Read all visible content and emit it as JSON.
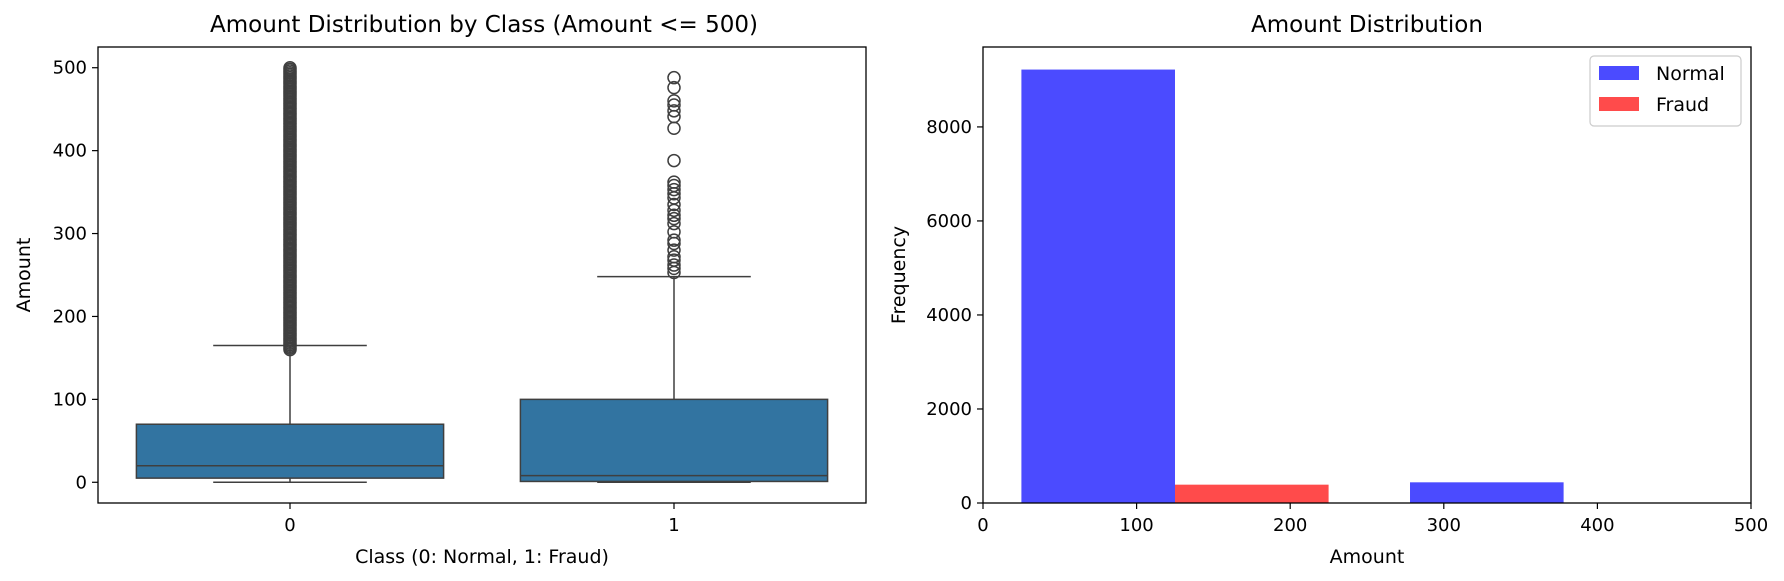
{
  "chart_data": [
    {
      "type": "box",
      "title": "Amount Distribution by Class (Amount <= 500)",
      "xlabel": "Class (0: Normal, 1: Fraud)",
      "ylabel": "Amount",
      "ylim": [
        -25,
        525
      ],
      "yticks": [
        0,
        100,
        200,
        300,
        400,
        500
      ],
      "categories": [
        "0",
        "1"
      ],
      "box_color": "#3274a1",
      "boxes": [
        {
          "category": "0",
          "whisker_low": 0,
          "q1": 5,
          "median": 20,
          "q3": 70,
          "whisker_high": 165,
          "outlier_range": [
            160,
            500
          ]
        },
        {
          "category": "1",
          "whisker_low": 0,
          "q1": 1,
          "median": 8,
          "q3": 100,
          "whisker_high": 248,
          "outliers": [
            253,
            258,
            262,
            268,
            272,
            280,
            288,
            292,
            302,
            312,
            318,
            322,
            328,
            335,
            343,
            348,
            353,
            358,
            362,
            388,
            427,
            441,
            448,
            455,
            460,
            476,
            488
          ]
        }
      ]
    },
    {
      "type": "bar",
      "title": "Amount Distribution",
      "xlabel": "Amount",
      "ylabel": "Frequency",
      "xlim": [
        0,
        500
      ],
      "ylim": [
        0,
        9700
      ],
      "xticks": [
        0,
        100,
        200,
        300,
        400,
        500
      ],
      "yticks": [
        0,
        2000,
        4000,
        6000,
        8000
      ],
      "legend_position": "top-right",
      "series": [
        {
          "name": "Normal",
          "color": "#4b4bff",
          "bars": [
            {
              "x0": 25,
              "x1": 125,
              "value": 9220
            },
            {
              "x0": 278,
              "x1": 378,
              "value": 440
            }
          ]
        },
        {
          "name": "Fraud",
          "color": "#ff4b4b",
          "bars": [
            {
              "x0": 125,
              "x1": 225,
              "value": 390
            },
            {
              "x0": 378,
              "x1": 478,
              "value": 8
            }
          ]
        }
      ]
    }
  ]
}
